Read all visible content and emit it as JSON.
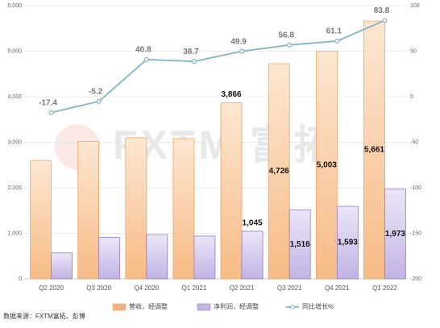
{
  "chart_data": {
    "type": "bar-line",
    "watermark": "FXTM 富拓",
    "source": "数据来源：FXTM富拓、彭博",
    "categories": [
      "Q2 2020",
      "Q3 2020",
      "Q4 2020",
      "Q1 2021",
      "Q2 2021",
      "Q3 2021",
      "Q4 2021",
      "Q1 2022"
    ],
    "series": [
      {
        "name": "营收，经调整",
        "color": "#f4b183",
        "values": [
          2600,
          3020,
          3100,
          3080,
          3866,
          4726,
          5003,
          5661
        ],
        "value_labels": [
          null,
          null,
          null,
          null,
          "3,866",
          "4,726",
          "5,003",
          "5,661"
        ]
      },
      {
        "name": "净利润，经调整",
        "color": "#c5b6e6",
        "values": [
          570,
          910,
          970,
          940,
          1045,
          1516,
          1593,
          1973
        ],
        "value_labels": [
          null,
          null,
          null,
          null,
          "1,045",
          "1,516",
          "1,593",
          "1,973"
        ]
      },
      {
        "name": "同比增长%",
        "color": "#7fb3c8",
        "axis": "y2",
        "type": "line",
        "values": [
          -17.4,
          -5.2,
          40.8,
          38.7,
          49.9,
          56.8,
          61.1,
          83.8
        ]
      }
    ],
    "ylim": [
      0,
      6000
    ],
    "yticks": [
      0,
      {
        "value": 1000,
        "label": "1,000"
      },
      {
        "value": 2000,
        "label": "2,000"
      },
      {
        "value": 3000,
        "label": "3,000"
      },
      {
        "value": 4000,
        "label": "4,000"
      },
      {
        "value": 5000,
        "label": "5,000"
      },
      {
        "value": 6000,
        "label": "6,000"
      }
    ],
    "y2lim": [
      -200,
      100
    ],
    "y2ticks": [
      -200,
      -150,
      -100,
      -50,
      0,
      50,
      100
    ],
    "grid": true
  }
}
